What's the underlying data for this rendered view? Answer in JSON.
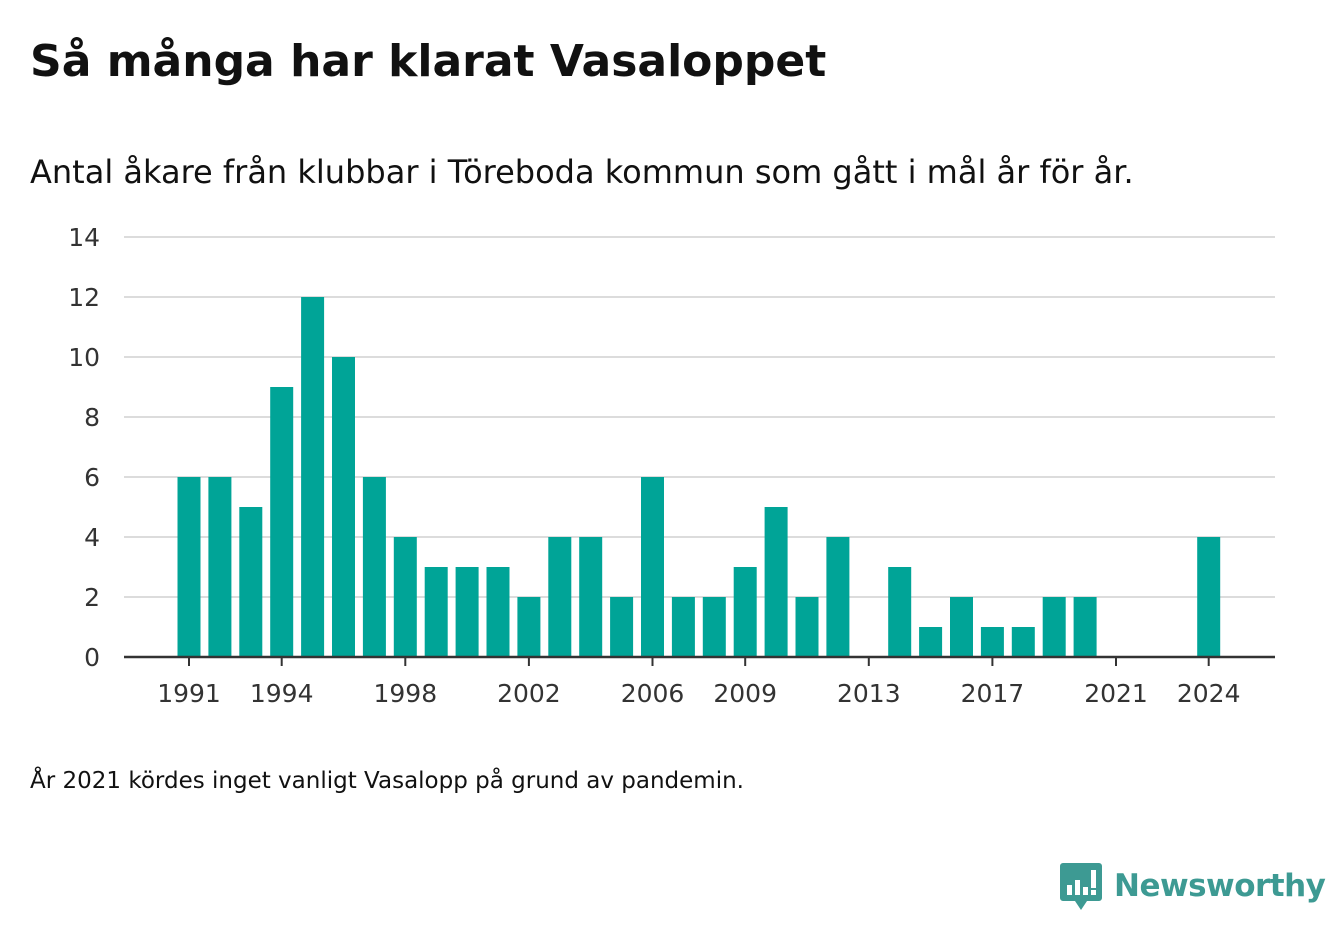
{
  "header": {
    "title": "Så många har klarat Vasaloppet",
    "subtitle": "Antal åkare från klubbar i Töreboda kommun som gått i mål år för år."
  },
  "footnote": "År 2021 kördes inget vanligt Vasalopp på grund av pandemin.",
  "brand": {
    "name": "Newsworthy",
    "icon": "bar-chart-speech-bubble-icon",
    "color": "#3d9a93"
  },
  "colors": {
    "bar": "#00a497",
    "grid": "#dcdcdc",
    "axis": "#333333",
    "text": "#333333"
  },
  "chart_data": {
    "type": "bar",
    "title": "",
    "xlabel": "",
    "ylabel": "",
    "ylim": [
      0,
      14
    ],
    "yticks": [
      0,
      2,
      4,
      6,
      8,
      10,
      12,
      14
    ],
    "grid": true,
    "legend": "none",
    "categories": [
      1991,
      1992,
      1993,
      1994,
      1995,
      1996,
      1997,
      1998,
      1999,
      2000,
      2001,
      2002,
      2003,
      2004,
      2005,
      2006,
      2007,
      2008,
      2009,
      2010,
      2011,
      2012,
      2013,
      2014,
      2015,
      2016,
      2017,
      2018,
      2019,
      2020,
      2021,
      2022,
      2023,
      2024
    ],
    "values": [
      6,
      6,
      5,
      9,
      12,
      10,
      6,
      4,
      3,
      3,
      3,
      2,
      4,
      4,
      2,
      6,
      2,
      2,
      3,
      5,
      2,
      4,
      0,
      3,
      1,
      2,
      1,
      1,
      2,
      2,
      0,
      0,
      0,
      4
    ],
    "xtick_labels": [
      "1991",
      "1994",
      "1998",
      "2002",
      "2006",
      "2009",
      "2013",
      "2017",
      "2021",
      "2024"
    ]
  }
}
